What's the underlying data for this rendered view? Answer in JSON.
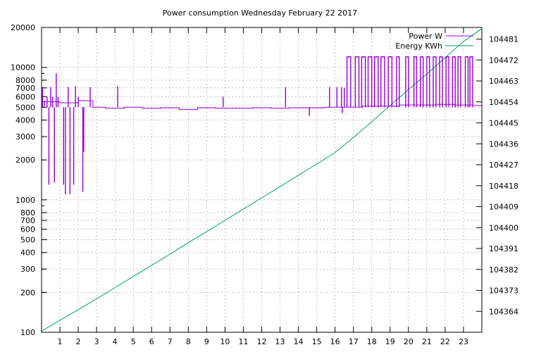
{
  "chart_data": {
    "type": "line",
    "title": "Power consumption Wednesday February 22 2017",
    "x_axis": {
      "range": [
        0,
        24
      ],
      "ticks": [
        1,
        2,
        3,
        4,
        5,
        6,
        7,
        8,
        9,
        10,
        11,
        12,
        13,
        14,
        15,
        16,
        17,
        18,
        19,
        20,
        21,
        22,
        23
      ],
      "grid": true
    },
    "y_axis_left": {
      "scale": "log",
      "range": [
        100,
        20000
      ],
      "ticks": [
        100,
        200,
        300,
        400,
        500,
        600,
        700,
        800,
        1000,
        2000,
        3000,
        4000,
        5000,
        6000,
        7000,
        8000,
        10000,
        20000
      ],
      "grid": true
    },
    "y_axis_right": {
      "scale": "linear",
      "range": [
        104355,
        104486
      ],
      "ticks": [
        104364,
        104373,
        104382,
        104391,
        104400,
        104409,
        104418,
        104427,
        104436,
        104445,
        104454,
        104463,
        104472,
        104481
      ]
    },
    "legend": {
      "position": "top-right"
    },
    "series": [
      {
        "name": "Power W",
        "color": "#9400d3",
        "axis": "left",
        "baseline": 5000,
        "baseline_segments": [
          {
            "x": 0.0,
            "y": 5500
          },
          {
            "x": 1.0,
            "y": 5400
          },
          {
            "x": 2.0,
            "y": 5600
          },
          {
            "x": 2.8,
            "y": 5000
          },
          {
            "x": 3.5,
            "y": 4900
          },
          {
            "x": 4.5,
            "y": 5000
          },
          {
            "x": 5.5,
            "y": 4900
          },
          {
            "x": 6.5,
            "y": 4950
          },
          {
            "x": 7.5,
            "y": 4800
          },
          {
            "x": 8.5,
            "y": 4950
          },
          {
            "x": 9.5,
            "y": 4900
          },
          {
            "x": 10.5,
            "y": 4900
          },
          {
            "x": 11.5,
            "y": 4950
          },
          {
            "x": 12.5,
            "y": 4900
          },
          {
            "x": 13.5,
            "y": 4950
          },
          {
            "x": 14.5,
            "y": 4950
          },
          {
            "x": 15.5,
            "y": 5000
          },
          {
            "x": 16.5,
            "y": 5000
          },
          {
            "x": 17.5,
            "y": 5100
          },
          {
            "x": 18.5,
            "y": 5100
          },
          {
            "x": 19.5,
            "y": 5200
          },
          {
            "x": 20.5,
            "y": 5200
          },
          {
            "x": 21.5,
            "y": 5250
          },
          {
            "x": 22.5,
            "y": 5200
          },
          {
            "x": 23.5,
            "y": 5150
          },
          {
            "x": 24.0,
            "y": 5200
          }
        ],
        "spikes": [
          {
            "x": 0.05,
            "y": 7100
          },
          {
            "x": 0.15,
            "y": 5600
          },
          {
            "x": 0.3,
            "y": 6000
          },
          {
            "x": 0.4,
            "y": 1300
          },
          {
            "x": 0.5,
            "y": 7100
          },
          {
            "x": 0.6,
            "y": 6000
          },
          {
            "x": 0.7,
            "y": 1350
          },
          {
            "x": 0.8,
            "y": 9000
          },
          {
            "x": 0.9,
            "y": 6000
          },
          {
            "x": 1.2,
            "y": 1300
          },
          {
            "x": 1.3,
            "y": 1100
          },
          {
            "x": 1.45,
            "y": 7100
          },
          {
            "x": 1.55,
            "y": 1100
          },
          {
            "x": 1.75,
            "y": 1300
          },
          {
            "x": 1.85,
            "y": 7200
          },
          {
            "x": 2.0,
            "y": 6000
          },
          {
            "x": 2.25,
            "y": 1150
          },
          {
            "x": 2.3,
            "y": 2300
          },
          {
            "x": 2.65,
            "y": 7100
          },
          {
            "x": 4.15,
            "y": 7200
          },
          {
            "x": 9.9,
            "y": 6000
          },
          {
            "x": 13.3,
            "y": 7100
          },
          {
            "x": 14.6,
            "y": 4300
          },
          {
            "x": 15.7,
            "y": 7100
          },
          {
            "x": 16.1,
            "y": 7100
          },
          {
            "x": 16.35,
            "y": 7100
          },
          {
            "x": 16.4,
            "y": 4500
          },
          {
            "x": 16.5,
            "y": 7000
          }
        ],
        "pulses": [
          {
            "start": 16.65,
            "end": 16.85,
            "y": 12000
          },
          {
            "start": 17.1,
            "end": 17.3,
            "y": 12000
          },
          {
            "start": 17.45,
            "end": 17.65,
            "y": 12000
          },
          {
            "start": 17.8,
            "end": 18.0,
            "y": 12000
          },
          {
            "start": 18.15,
            "end": 18.35,
            "y": 12000
          },
          {
            "start": 18.5,
            "end": 18.7,
            "y": 12000
          },
          {
            "start": 18.9,
            "end": 19.1,
            "y": 12000
          },
          {
            "start": 19.35,
            "end": 19.5,
            "y": 12000
          },
          {
            "start": 19.85,
            "end": 20.0,
            "y": 12000
          },
          {
            "start": 20.3,
            "end": 20.45,
            "y": 12000
          },
          {
            "start": 20.65,
            "end": 20.8,
            "y": 12000
          },
          {
            "start": 21.0,
            "end": 21.15,
            "y": 12000
          },
          {
            "start": 21.35,
            "end": 21.5,
            "y": 12000
          },
          {
            "start": 21.7,
            "end": 21.85,
            "y": 12000
          },
          {
            "start": 22.05,
            "end": 22.2,
            "y": 12000
          },
          {
            "start": 22.4,
            "end": 22.55,
            "y": 12000
          },
          {
            "start": 22.7,
            "end": 22.85,
            "y": 12000
          },
          {
            "start": 23.1,
            "end": 23.25,
            "y": 12000
          },
          {
            "start": 23.35,
            "end": 23.5,
            "y": 12000
          }
        ]
      },
      {
        "name": "Energy KWh",
        "color": "#009e73",
        "axis": "right",
        "points": [
          {
            "x": 0,
            "y": 104355.5
          },
          {
            "x": 1,
            "y": 104360.2
          },
          {
            "x": 2,
            "y": 104364.7
          },
          {
            "x": 3,
            "y": 104369.4
          },
          {
            "x": 4,
            "y": 104374.2
          },
          {
            "x": 5,
            "y": 104379.0
          },
          {
            "x": 6,
            "y": 104383.8
          },
          {
            "x": 7,
            "y": 104388.6
          },
          {
            "x": 8,
            "y": 104393.5
          },
          {
            "x": 9,
            "y": 104398.3
          },
          {
            "x": 10,
            "y": 104403.1
          },
          {
            "x": 11,
            "y": 104407.9
          },
          {
            "x": 12,
            "y": 104412.8
          },
          {
            "x": 13,
            "y": 104417.6
          },
          {
            "x": 14,
            "y": 104422.5
          },
          {
            "x": 15,
            "y": 104427.3
          },
          {
            "x": 16,
            "y": 104432.3
          },
          {
            "x": 17,
            "y": 104438.7
          },
          {
            "x": 18,
            "y": 104445.5
          },
          {
            "x": 19,
            "y": 104452.5
          },
          {
            "x": 20,
            "y": 104459.3
          },
          {
            "x": 21,
            "y": 104466.0
          },
          {
            "x": 22,
            "y": 104473.0
          },
          {
            "x": 23,
            "y": 104480.0
          },
          {
            "x": 24,
            "y": 104485.5
          }
        ]
      }
    ]
  }
}
